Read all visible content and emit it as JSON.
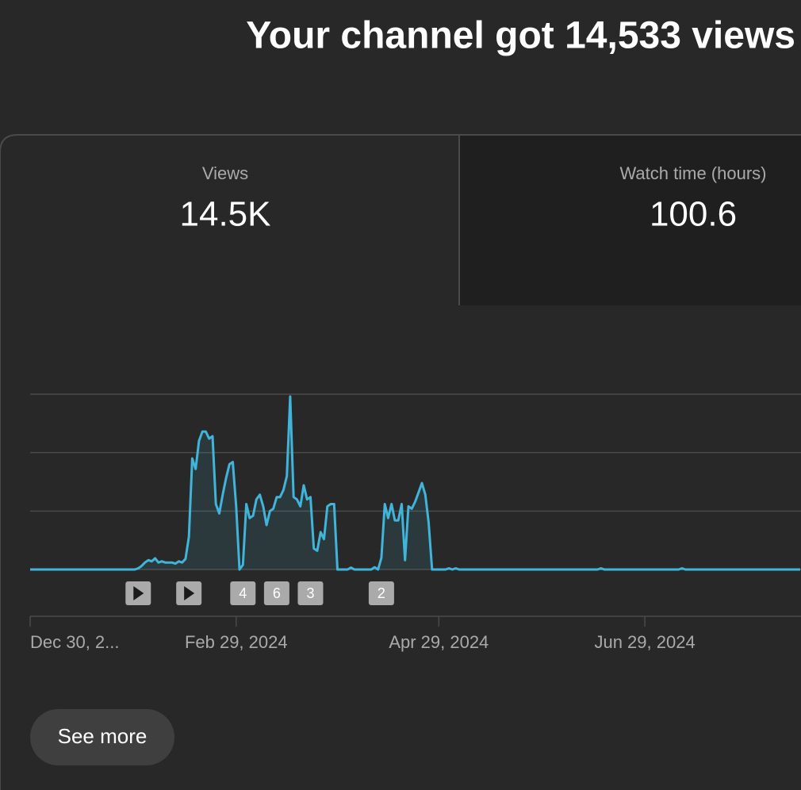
{
  "title": "Your channel got 14,533 views",
  "tabs": [
    {
      "label": "Views",
      "value": "14.5K"
    },
    {
      "label": "Watch time (hours)",
      "value": "100.6"
    }
  ],
  "chart_data": {
    "type": "line",
    "color": "#41b4d9",
    "grid": true,
    "xlim": [
      "2023-12-30",
      "2024-08-14"
    ],
    "ylim": [
      0,
      750
    ],
    "yticks": [
      0,
      250,
      500,
      750
    ],
    "xticks": [
      {
        "value": "2023-12-30",
        "label": "Dec 30, 2..."
      },
      {
        "value": "2024-02-29",
        "label": "Feb 29, 2024"
      },
      {
        "value": "2024-04-29",
        "label": "Apr 29, 2024"
      },
      {
        "value": "2024-06-29",
        "label": "Jun 29, 2024"
      }
    ],
    "x": [
      "2023-12-30",
      "2024-01-30",
      "2024-01-31",
      "2024-02-01",
      "2024-02-02",
      "2024-02-03",
      "2024-02-04",
      "2024-02-05",
      "2024-02-06",
      "2024-02-07",
      "2024-02-08",
      "2024-02-09",
      "2024-02-10",
      "2024-02-11",
      "2024-02-12",
      "2024-02-13",
      "2024-02-14",
      "2024-02-15",
      "2024-02-16",
      "2024-02-17",
      "2024-02-18",
      "2024-02-19",
      "2024-02-20",
      "2024-02-21",
      "2024-02-22",
      "2024-02-23",
      "2024-02-24",
      "2024-02-25",
      "2024-02-26",
      "2024-02-27",
      "2024-02-28",
      "2024-02-29",
      "2024-03-01",
      "2024-03-02",
      "2024-03-03",
      "2024-03-04",
      "2024-03-05",
      "2024-03-06",
      "2024-03-07",
      "2024-03-08",
      "2024-03-09",
      "2024-03-10",
      "2024-03-11",
      "2024-03-12",
      "2024-03-13",
      "2024-03-14",
      "2024-03-15",
      "2024-03-16",
      "2024-03-17",
      "2024-03-18",
      "2024-03-19",
      "2024-03-20",
      "2024-03-21",
      "2024-03-22",
      "2024-03-23",
      "2024-03-24",
      "2024-03-25",
      "2024-03-26",
      "2024-03-27",
      "2024-03-28",
      "2024-03-29",
      "2024-03-30",
      "2024-04-02",
      "2024-04-03",
      "2024-04-04",
      "2024-04-09",
      "2024-04-10",
      "2024-04-11",
      "2024-04-12",
      "2024-04-13",
      "2024-04-14",
      "2024-04-15",
      "2024-04-16",
      "2024-04-17",
      "2024-04-18",
      "2024-04-19",
      "2024-04-20",
      "2024-04-21",
      "2024-04-22",
      "2024-04-23",
      "2024-04-24",
      "2024-04-25",
      "2024-04-26",
      "2024-04-27",
      "2024-05-01",
      "2024-05-02",
      "2024-05-03",
      "2024-05-04",
      "2024-05-05",
      "2024-06-15",
      "2024-06-16",
      "2024-06-17",
      "2024-07-09",
      "2024-07-10",
      "2024-07-11",
      "2024-08-14"
    ],
    "values": [
      0,
      0,
      5,
      15,
      30,
      40,
      35,
      48,
      30,
      35,
      30,
      30,
      30,
      25,
      35,
      30,
      45,
      140,
      475,
      430,
      550,
      590,
      590,
      560,
      570,
      280,
      240,
      320,
      390,
      450,
      460,
      270,
      0,
      20,
      280,
      220,
      230,
      300,
      320,
      270,
      190,
      250,
      260,
      310,
      310,
      340,
      400,
      740,
      310,
      300,
      270,
      360,
      300,
      310,
      90,
      80,
      160,
      130,
      270,
      280,
      280,
      0,
      0,
      8,
      0,
      0,
      10,
      0,
      50,
      280,
      220,
      280,
      210,
      210,
      280,
      40,
      270,
      260,
      290,
      330,
      370,
      320,
      200,
      0,
      0,
      5,
      0,
      5,
      0,
      0,
      5,
      0,
      0,
      5,
      0,
      0
    ],
    "annotations": [
      {
        "x": "2024-01-31"
      },
      {
        "x": "2024-02-15"
      },
      {
        "x": "2024-03-02",
        "label": "4"
      },
      {
        "x": "2024-03-12",
        "label": "6"
      },
      {
        "x": "2024-03-22",
        "label": "3"
      },
      {
        "x": "2024-04-12",
        "label": "2"
      }
    ]
  },
  "button": "See more"
}
